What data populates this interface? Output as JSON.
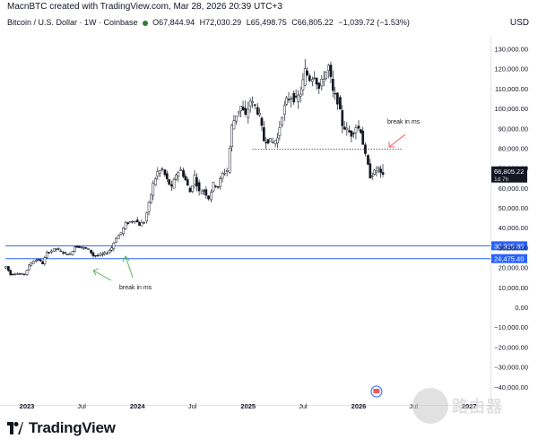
{
  "header": {
    "credit": "MacnBTC created with TradingView.com, Mar 28, 2026 20:39 UTC+3"
  },
  "legend": {
    "symbol": "Bitcoin / U.S. Dollar · 1W · Coinbase",
    "open": "O67,844.94",
    "high": "H72,030.29",
    "low": "L65,498.75",
    "close": "C66,805.22",
    "change": "−1,039.72 (−1.53%)"
  },
  "currency_label": "USD",
  "brand": {
    "name": "TradingView"
  },
  "watermark": {
    "text": "路由器"
  },
  "price_tag": {
    "value": "66,805.22",
    "countdown": "1d 7h"
  },
  "annotations": {
    "break_top": "break in ms",
    "break_bottom": "break in ms"
  },
  "colors": {
    "candle": "#131722",
    "hline": "#2962ff",
    "up_arrow": "#4caf50",
    "down_arrow": "#f7525f",
    "price_tag_bg": "#131722",
    "level_tag_bg": "#2962ff"
  },
  "chart_data": {
    "type": "candlestick",
    "title": "Bitcoin / U.S. Dollar · 1W · Coinbase",
    "ylabel": "USD",
    "ylim": [
      -40000,
      140000
    ],
    "y_ticks": [
      {
        "v": 130000,
        "label": "130,000.00"
      },
      {
        "v": 120000,
        "label": "120,000.00"
      },
      {
        "v": 110000,
        "label": "110,000.00"
      },
      {
        "v": 100000,
        "label": "100,000.00"
      },
      {
        "v": 90000,
        "label": "90,000.00"
      },
      {
        "v": 80000,
        "label": "80,000.00"
      },
      {
        "v": 70000,
        "label": "70,000.00"
      },
      {
        "v": 60000,
        "label": "60,000.00"
      },
      {
        "v": 50000,
        "label": "50,000.00"
      },
      {
        "v": 40000,
        "label": "40,000.00"
      },
      {
        "v": 30000,
        "label": "30,000.00"
      },
      {
        "v": 20000,
        "label": "20,000.00"
      },
      {
        "v": 10000,
        "label": "10,000.00"
      },
      {
        "v": 0,
        "label": "0.00"
      },
      {
        "v": -10000,
        "label": "−10,000.00"
      },
      {
        "v": -20000,
        "label": "−20,000.00"
      },
      {
        "v": -30000,
        "label": "−30,000.00"
      },
      {
        "v": -40000,
        "label": "−40,000.00"
      }
    ],
    "x_ticks": [
      {
        "date": "2023-01-01",
        "label": "2023"
      },
      {
        "date": "2023-07-01",
        "label": "Jul"
      },
      {
        "date": "2024-01-01",
        "label": "2024"
      },
      {
        "date": "2024-07-01",
        "label": "Jul"
      },
      {
        "date": "2025-01-01",
        "label": "2025"
      },
      {
        "date": "2025-07-01",
        "label": "Jul"
      },
      {
        "date": "2026-01-01",
        "label": "2026"
      },
      {
        "date": "2026-07-01",
        "label": "Jul"
      },
      {
        "date": "2027-01-01",
        "label": "2027"
      }
    ],
    "horizontal_levels": [
      {
        "value": 30925.89,
        "label": "30,925.89"
      },
      {
        "value": 24475.4,
        "label": "24,475.40"
      }
    ],
    "dotted_level": {
      "value": 79500,
      "from": "2025-01-15",
      "to": "2026-03-28"
    },
    "close_series": [
      [
        "2022-10-15",
        19100
      ],
      [
        "2022-11-01",
        20500
      ],
      [
        "2022-11-15",
        16500
      ],
      [
        "2022-12-01",
        17000
      ],
      [
        "2022-12-15",
        16800
      ],
      [
        "2023-01-01",
        16600
      ],
      [
        "2023-01-15",
        21000
      ],
      [
        "2023-02-01",
        23500
      ],
      [
        "2023-02-15",
        24000
      ],
      [
        "2023-03-01",
        22000
      ],
      [
        "2023-03-15",
        27500
      ],
      [
        "2023-04-01",
        28500
      ],
      [
        "2023-04-15",
        29500
      ],
      [
        "2023-05-01",
        28000
      ],
      [
        "2023-05-15",
        27000
      ],
      [
        "2023-06-01",
        26500
      ],
      [
        "2023-06-15",
        30500
      ],
      [
        "2023-07-01",
        30400
      ],
      [
        "2023-07-15",
        29800
      ],
      [
        "2023-08-01",
        29100
      ],
      [
        "2023-08-15",
        26000
      ],
      [
        "2023-09-01",
        26000
      ],
      [
        "2023-09-15",
        26800
      ],
      [
        "2023-10-01",
        27500
      ],
      [
        "2023-10-15",
        30000
      ],
      [
        "2023-11-01",
        35000
      ],
      [
        "2023-11-15",
        37500
      ],
      [
        "2023-12-01",
        42000
      ],
      [
        "2023-12-15",
        43000
      ],
      [
        "2024-01-01",
        44000
      ],
      [
        "2024-01-15",
        41500
      ],
      [
        "2024-02-01",
        43000
      ],
      [
        "2024-02-15",
        52000
      ],
      [
        "2024-03-01",
        62000
      ],
      [
        "2024-03-15",
        68000
      ],
      [
        "2024-04-01",
        69000
      ],
      [
        "2024-04-15",
        64000
      ],
      [
        "2024-05-01",
        60000
      ],
      [
        "2024-05-15",
        67000
      ],
      [
        "2024-06-01",
        69000
      ],
      [
        "2024-06-15",
        64000
      ],
      [
        "2024-07-01",
        58000
      ],
      [
        "2024-07-15",
        66000
      ],
      [
        "2024-08-01",
        58000
      ],
      [
        "2024-08-15",
        59000
      ],
      [
        "2024-09-01",
        55000
      ],
      [
        "2024-09-15",
        62000
      ],
      [
        "2024-10-01",
        61000
      ],
      [
        "2024-10-15",
        67000
      ],
      [
        "2024-11-01",
        69000
      ],
      [
        "2024-11-15",
        91000
      ],
      [
        "2024-12-01",
        97000
      ],
      [
        "2024-12-15",
        101000
      ],
      [
        "2025-01-01",
        96000
      ],
      [
        "2025-01-15",
        104000
      ],
      [
        "2025-02-01",
        101000
      ],
      [
        "2025-02-15",
        96000
      ],
      [
        "2025-03-01",
        84000
      ],
      [
        "2025-03-15",
        84000
      ],
      [
        "2025-04-01",
        83000
      ],
      [
        "2025-04-15",
        85000
      ],
      [
        "2025-05-01",
        97000
      ],
      [
        "2025-05-15",
        104000
      ],
      [
        "2025-06-01",
        106000
      ],
      [
        "2025-06-15",
        104000
      ],
      [
        "2025-07-01",
        108000
      ],
      [
        "2025-07-15",
        119000
      ],
      [
        "2025-08-01",
        115000
      ],
      [
        "2025-08-15",
        117000
      ],
      [
        "2025-09-01",
        110000
      ],
      [
        "2025-09-15",
        116000
      ],
      [
        "2025-10-01",
        121000
      ],
      [
        "2025-10-15",
        108000
      ],
      [
        "2025-11-01",
        104000
      ],
      [
        "2025-11-15",
        92000
      ],
      [
        "2025-12-01",
        89000
      ],
      [
        "2025-12-15",
        87000
      ],
      [
        "2026-01-01",
        91000
      ],
      [
        "2026-01-15",
        89000
      ],
      [
        "2026-02-01",
        76000
      ],
      [
        "2026-02-15",
        66000
      ],
      [
        "2026-03-01",
        68000
      ],
      [
        "2026-03-15",
        70000
      ],
      [
        "2026-03-22",
        66805.22
      ]
    ]
  }
}
